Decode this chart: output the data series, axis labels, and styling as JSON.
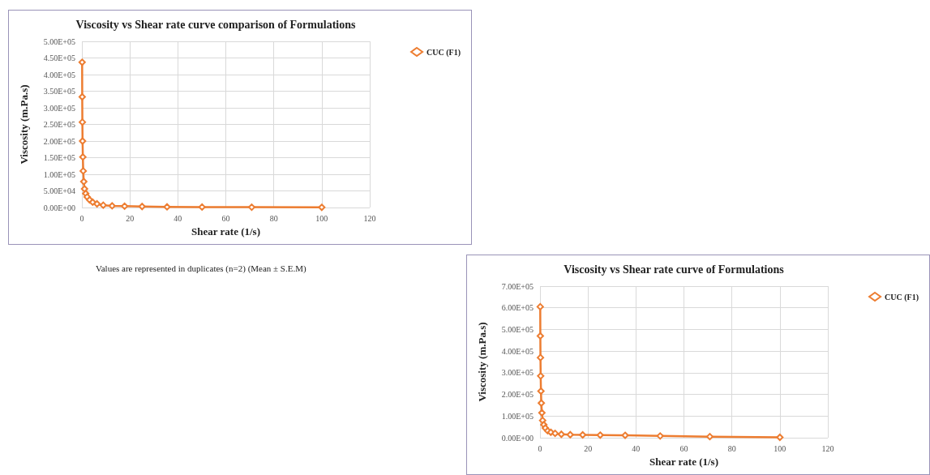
{
  "chart_data": [
    {
      "type": "line",
      "title": "Viscosity vs Shear rate curve comparison of Formulations",
      "xlabel": "Shear rate (1/s)",
      "ylabel": "Viscosity (m.Pa.s)",
      "legend": "top right",
      "grid": true,
      "marker": "diamond",
      "line_style": "solid",
      "annotations": [
        "Values are represented in duplicates (n=2) (Mean ± S.E.M)"
      ],
      "x": [
        0.1,
        0.14,
        0.2,
        0.28,
        0.4,
        0.56,
        0.79,
        1.1,
        1.6,
        2.2,
        3.2,
        4.5,
        6.3,
        8.9,
        12.6,
        17.8,
        25.1,
        35.5,
        50.1,
        70.8,
        100
      ],
      "series": [
        {
          "name": "CUC (F1)",
          "color": "#ed7d31",
          "values": [
            437000,
            333000,
            257000,
            200000,
            152000,
            110000,
            78000,
            56000,
            42000,
            32000,
            23000,
            16000,
            11000,
            7000,
            5000,
            4000,
            3000,
            2000,
            1500,
            1000,
            500
          ]
        }
      ],
      "xlim": [
        0,
        120
      ],
      "xticks": [
        0,
        20,
        40,
        60,
        80,
        100,
        120
      ],
      "ylim": [
        0,
        500000
      ],
      "yticks": [
        {
          "value": 0,
          "label": "0.00E+00"
        },
        {
          "value": 50000,
          "label": "5.00E+04"
        },
        {
          "value": 100000,
          "label": "1.00E+05"
        },
        {
          "value": 150000,
          "label": "1.50E+05"
        },
        {
          "value": 200000,
          "label": "2.00E+05"
        },
        {
          "value": 250000,
          "label": "2.50E+05"
        },
        {
          "value": 300000,
          "label": "3.00E+05"
        },
        {
          "value": 350000,
          "label": "3.50E+05"
        },
        {
          "value": 400000,
          "label": "4.00E+05"
        },
        {
          "value": 450000,
          "label": "4.50E+05"
        },
        {
          "value": 500000,
          "label": "5.00E+05"
        }
      ]
    },
    {
      "type": "line",
      "title": "Viscosity vs Shear rate curve of Formulations",
      "xlabel": "Shear rate (1/s)",
      "ylabel": "Viscosity (m.Pa.s)",
      "legend": "top right",
      "grid": true,
      "marker": "diamond",
      "line_style": "solid",
      "x": [
        0.1,
        0.14,
        0.2,
        0.28,
        0.4,
        0.56,
        0.79,
        1.1,
        1.6,
        2.2,
        3.2,
        4.5,
        6.3,
        8.9,
        12.6,
        17.8,
        25.1,
        35.5,
        50.1,
        70.8,
        100
      ],
      "series": [
        {
          "name": "CUC (F1)",
          "color": "#ed7d31",
          "values": [
            605000,
            470000,
            370000,
            285000,
            215000,
            160000,
            115000,
            80000,
            60000,
            45000,
            32000,
            25000,
            20000,
            16000,
            14000,
            13000,
            12000,
            11000,
            8000,
            5000,
            2000
          ]
        }
      ],
      "xlim": [
        0,
        120
      ],
      "xticks": [
        0,
        20,
        40,
        60,
        80,
        100,
        120
      ],
      "ylim": [
        0,
        700000
      ],
      "yticks": [
        {
          "value": 0,
          "label": "0.00E+00"
        },
        {
          "value": 100000,
          "label": "1.00E+05"
        },
        {
          "value": 200000,
          "label": "2.00E+05"
        },
        {
          "value": 300000,
          "label": "3.00E+05"
        },
        {
          "value": 400000,
          "label": "4.00E+05"
        },
        {
          "value": 500000,
          "label": "5.00E+05"
        },
        {
          "value": 600000,
          "label": "6.00E+05"
        },
        {
          "value": 700000,
          "label": "7.00E+05"
        }
      ]
    }
  ]
}
